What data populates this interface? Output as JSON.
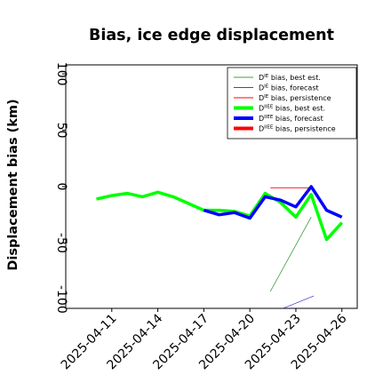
{
  "chart_data": {
    "type": "line",
    "title": "Bias, ice edge displacement",
    "xlabel": "",
    "ylabel": "Displacement bias (km)",
    "xlim": [
      "2025-04-08",
      "2025-04-27"
    ],
    "ylim": [
      -108,
      108
    ],
    "y_ticks": [
      -100,
      -50,
      0,
      50,
      100
    ],
    "x_ticks": [
      {
        "date": "2025-04-11",
        "label": "2025-04-11",
        "color": "#000000"
      },
      {
        "date": "2025-04-14",
        "label": "2025-04-14",
        "color": "#000000"
      },
      {
        "date": "2025-04-17",
        "label": "2025-04-17",
        "color": "#008000"
      },
      {
        "date": "2025-04-20",
        "label": "2025-04-20",
        "color": "#000000"
      },
      {
        "date": "2025-04-23",
        "label": "2025-04-23",
        "color": "#000000"
      },
      {
        "date": "2025-04-26",
        "label": "2025-04-26",
        "color": "#000000"
      }
    ],
    "grid": false,
    "legend_position": "top-right",
    "series": [
      {
        "name": "D$^{IE}$ bias, best est.",
        "legend": [
          "D",
          "IE",
          " bias, best est."
        ],
        "color": "#008000",
        "width": 0.6,
        "points": [
          [
            "2025-04-21 08:00",
            -93
          ],
          [
            "2025-04-24 00:00",
            -27
          ]
        ]
      },
      {
        "name": "D$^{IE}$ bias, forecast",
        "legend": [
          "D",
          "IE",
          " bias, forecast"
        ],
        "color": "#0000cc",
        "width": 0.6,
        "points": [
          [
            "2025-04-22 04:00",
            -108
          ],
          [
            "2025-04-24 04:00",
            -97
          ]
        ]
      },
      {
        "name": "D$^{IE}$ bias, persistence",
        "legend": [
          "D",
          "IE",
          " bias, persistence"
        ],
        "color": "#ff0000",
        "width": 0.8,
        "points": [
          [
            "2025-04-21 08:00",
            -1
          ],
          [
            "2025-04-24 00:00",
            -1
          ]
        ]
      },
      {
        "name": "D$^{IIEE}$ bias, best est.",
        "legend": [
          "D",
          "IIEE",
          " bias, best est."
        ],
        "color": "#00ff00",
        "width": 3.5,
        "points": [
          [
            "2025-04-10",
            -11
          ],
          [
            "2025-04-11",
            -8
          ],
          [
            "2025-04-12",
            -6
          ],
          [
            "2025-04-13",
            -9
          ],
          [
            "2025-04-14",
            -5
          ],
          [
            "2025-04-15",
            -9
          ],
          [
            "2025-04-16",
            -15
          ],
          [
            "2025-04-17",
            -21
          ],
          [
            "2025-04-18",
            -21
          ],
          [
            "2025-04-19",
            -22
          ],
          [
            "2025-04-20",
            -26
          ],
          [
            "2025-04-21",
            -6
          ],
          [
            "2025-04-22",
            -14
          ],
          [
            "2025-04-23",
            -27
          ],
          [
            "2025-04-24",
            -7
          ],
          [
            "2025-04-25",
            -47
          ],
          [
            "2025-04-26",
            -32
          ]
        ]
      },
      {
        "name": "D$^{IIEE}$ bias, forecast",
        "legend": [
          "D",
          "IIEE",
          " bias, forecast"
        ],
        "color": "#0000ff",
        "width": 3.5,
        "points": [
          [
            "2025-04-17",
            -21
          ],
          [
            "2025-04-18",
            -25
          ],
          [
            "2025-04-19",
            -23
          ],
          [
            "2025-04-20",
            -28
          ],
          [
            "2025-04-21",
            -9
          ],
          [
            "2025-04-22",
            -12
          ],
          [
            "2025-04-23",
            -18
          ],
          [
            "2025-04-24",
            0
          ],
          [
            "2025-04-25",
            -21
          ],
          [
            "2025-04-26",
            -27
          ]
        ]
      },
      {
        "name": "D$^{IIEE}$ bias, persistence",
        "legend": [
          "D",
          "IIEE",
          " bias, persistence"
        ],
        "color": "#ff0000",
        "width": 3.5,
        "points": []
      }
    ]
  }
}
